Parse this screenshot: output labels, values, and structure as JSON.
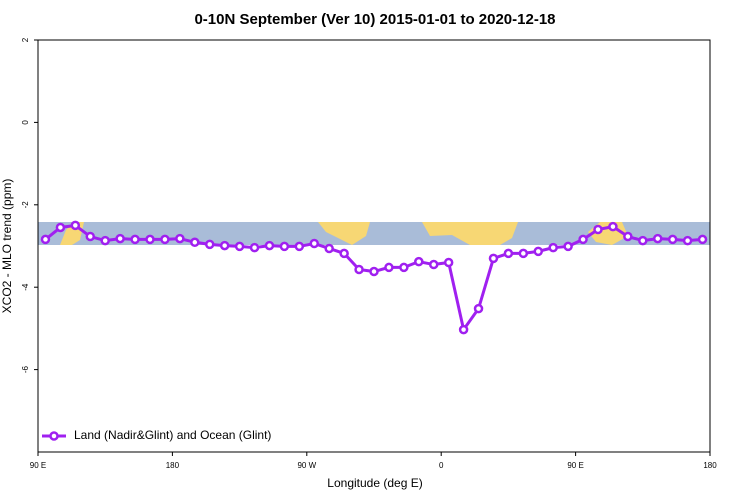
{
  "chart_data": {
    "type": "line",
    "title": "0-10N September (Ver 10)   2015-01-01 to 2020-12-18",
    "x_label": "Longitude (deg E)",
    "y_label": "XCO2 - MLO trend (ppm)",
    "x": [
      95,
      105,
      115,
      125,
      135,
      145,
      155,
      165,
      175,
      185,
      195,
      205,
      215,
      225,
      235,
      245,
      255,
      265,
      275,
      285,
      295,
      305,
      315,
      325,
      335,
      345,
      355,
      365,
      375,
      385,
      395,
      405,
      415,
      425,
      435,
      445,
      455,
      465,
      475,
      485,
      495,
      505,
      515,
      525,
      535
    ],
    "series": [
      {
        "name": "Land (Nadir&Glint) and Ocean (Glint)",
        "color": "#a020f0",
        "values": [
          -2.84,
          -2.55,
          -2.5,
          -2.77,
          -2.87,
          -2.82,
          -2.84,
          -2.84,
          -2.84,
          -2.82,
          -2.91,
          -2.96,
          -2.99,
          -3.01,
          -3.04,
          -2.99,
          -3.01,
          -3.01,
          -2.94,
          -3.06,
          -3.18,
          -3.57,
          -3.62,
          -3.52,
          -3.52,
          -3.38,
          -3.45,
          -3.4,
          -5.03,
          -4.52,
          -3.3,
          -3.18,
          -3.18,
          -3.13,
          -3.04,
          -3.01,
          -2.84,
          -2.6,
          -2.53,
          -2.77,
          -2.87,
          -2.82,
          -2.84,
          -2.87,
          -2.84
        ]
      }
    ],
    "xlim": [
      90,
      540
    ],
    "xticks": [
      {
        "value": 90,
        "label": "90 E"
      },
      180,
      {
        "value": 270,
        "label": "90 W"
      },
      {
        "value": 360,
        "label": "0"
      },
      {
        "value": 450,
        "label": "90 E"
      },
      {
        "value": 540,
        "label": "180"
      }
    ],
    "ylim": [
      -8,
      2
    ],
    "yticks": [
      -6,
      -4,
      -2,
      0,
      2
    ],
    "legend_position": "bottom-left"
  }
}
